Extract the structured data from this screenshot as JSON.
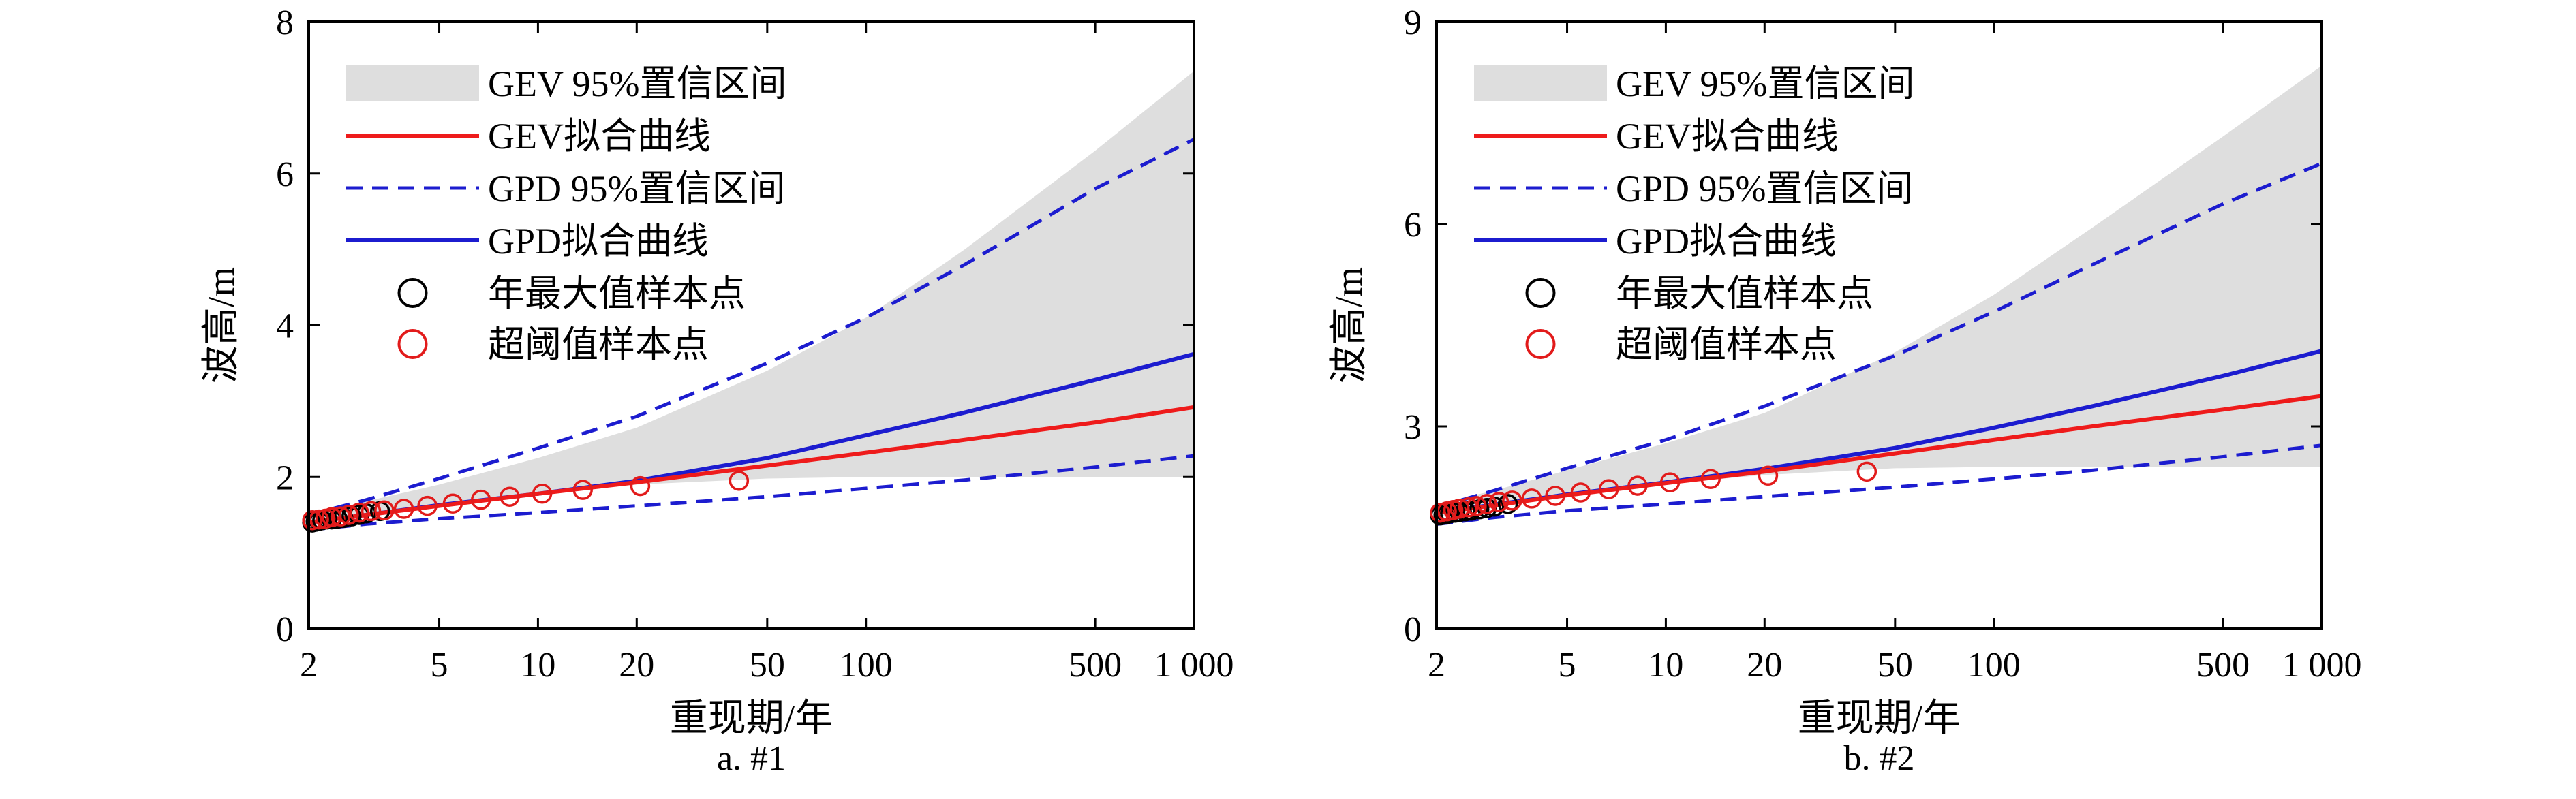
{
  "chart_data": [
    {
      "type": "line",
      "caption": "a. #1",
      "xlabel": "重现期/年",
      "ylabel": "波高/m",
      "x_scale": "log",
      "xlim": [
        2,
        1000
      ],
      "ylim": [
        0,
        8
      ],
      "x_ticks": [
        2,
        5,
        10,
        20,
        50,
        100,
        500,
        1000
      ],
      "x_tick_labels": [
        "2",
        "5",
        "10",
        "20",
        "50",
        "100",
        "500",
        "1 000"
      ],
      "y_ticks": [
        0,
        2,
        4,
        6,
        8
      ],
      "y_tick_labels": [
        "0",
        "2",
        "4",
        "6",
        "8"
      ],
      "grid": false,
      "legend_position": "top-left",
      "legend": [
        {
          "label": "GEV 95%置信区间",
          "style": "band"
        },
        {
          "label": "GEV拟合曲线",
          "style": "solid-red"
        },
        {
          "label": "GPD 95%置信区间",
          "style": "dashed-blue"
        },
        {
          "label": "GPD拟合曲线",
          "style": "solid-blue"
        },
        {
          "label": "年最大值样本点",
          "style": "circle-black"
        },
        {
          "label": "超阈值样本点",
          "style": "circle-red"
        }
      ],
      "x": [
        2,
        3,
        5,
        10,
        20,
        50,
        100,
        200,
        500,
        1000
      ],
      "gev_ci_lower": [
        1.35,
        1.48,
        1.62,
        1.78,
        1.9,
        1.98,
        2.0,
        2.0,
        2.0,
        2.0
      ],
      "gev_ci_upper": [
        1.5,
        1.68,
        1.9,
        2.25,
        2.65,
        3.4,
        4.1,
        5.0,
        6.3,
        7.35
      ],
      "gev_fit": [
        1.4,
        1.5,
        1.62,
        1.78,
        1.93,
        2.15,
        2.32,
        2.49,
        2.72,
        2.92
      ],
      "gpd_ci_lower": [
        1.3,
        1.38,
        1.45,
        1.53,
        1.62,
        1.74,
        1.85,
        1.96,
        2.13,
        2.28
      ],
      "gpd_ci_upper": [
        1.5,
        1.7,
        1.98,
        2.38,
        2.8,
        3.5,
        4.1,
        4.8,
        5.8,
        6.45
      ],
      "gpd_fit": [
        1.4,
        1.5,
        1.63,
        1.78,
        1.95,
        2.25,
        2.55,
        2.85,
        3.28,
        3.62
      ],
      "annual_max_points": {
        "x": [
          2.05,
          2.1,
          2.15,
          2.2,
          2.28,
          2.35,
          2.45,
          2.55,
          2.7,
          2.85,
          3.0,
          3.3
        ],
        "y": [
          1.4,
          1.41,
          1.42,
          1.43,
          1.44,
          1.44,
          1.45,
          1.46,
          1.48,
          1.5,
          1.52,
          1.55
        ]
      },
      "pot_points": {
        "x": [
          2.05,
          2.15,
          2.25,
          2.35,
          2.5,
          2.65,
          2.85,
          3.1,
          3.4,
          3.9,
          4.6,
          5.5,
          6.7,
          8.2,
          10.3,
          13.7,
          20.5,
          41
        ],
        "y": [
          1.43,
          1.44,
          1.45,
          1.47,
          1.48,
          1.5,
          1.53,
          1.55,
          1.56,
          1.58,
          1.62,
          1.65,
          1.7,
          1.74,
          1.78,
          1.83,
          1.88,
          1.95
        ]
      }
    },
    {
      "type": "line",
      "caption": "b. #2",
      "xlabel": "重现期/年",
      "ylabel": "波高/m",
      "x_scale": "log",
      "xlim": [
        2,
        1000
      ],
      "ylim": [
        0,
        9
      ],
      "x_ticks": [
        2,
        5,
        10,
        20,
        50,
        100,
        500,
        1000
      ],
      "x_tick_labels": [
        "2",
        "5",
        "10",
        "20",
        "50",
        "100",
        "500",
        "1 000"
      ],
      "y_ticks": [
        0,
        3,
        6,
        9
      ],
      "y_tick_labels": [
        "0",
        "3",
        "6",
        "9"
      ],
      "grid": false,
      "legend_position": "top-left",
      "legend": [
        {
          "label": "GEV 95%置信区间",
          "style": "band"
        },
        {
          "label": "GEV拟合曲线",
          "style": "solid-red"
        },
        {
          "label": "GPD 95%置信区间",
          "style": "dashed-blue"
        },
        {
          "label": "GPD拟合曲线",
          "style": "solid-blue"
        },
        {
          "label": "年最大值样本点",
          "style": "circle-black"
        },
        {
          "label": "超阈值样本点",
          "style": "circle-red"
        }
      ],
      "x": [
        2,
        3,
        5,
        10,
        20,
        50,
        100,
        200,
        500,
        1000
      ],
      "gev_ci_lower": [
        1.65,
        1.8,
        1.98,
        2.15,
        2.28,
        2.38,
        2.4,
        2.4,
        2.4,
        2.4
      ],
      "gev_ci_upper": [
        1.85,
        2.05,
        2.35,
        2.75,
        3.2,
        4.1,
        4.95,
        5.95,
        7.3,
        8.35
      ],
      "gev_fit": [
        1.72,
        1.83,
        1.98,
        2.16,
        2.33,
        2.6,
        2.8,
        3.0,
        3.25,
        3.45
      ],
      "gpd_ci_lower": [
        1.55,
        1.65,
        1.75,
        1.85,
        1.96,
        2.1,
        2.22,
        2.35,
        2.55,
        2.72
      ],
      "gpd_ci_upper": [
        1.8,
        2.05,
        2.38,
        2.8,
        3.3,
        4.05,
        4.7,
        5.4,
        6.3,
        6.9
      ],
      "gpd_fit": [
        1.72,
        1.84,
        1.99,
        2.17,
        2.37,
        2.68,
        2.98,
        3.3,
        3.75,
        4.12
      ],
      "annual_max_points": {
        "x": [
          2.05,
          2.1,
          2.15,
          2.2,
          2.28,
          2.35,
          2.45,
          2.55,
          2.7,
          2.85,
          3.0,
          3.3
        ],
        "y": [
          1.68,
          1.69,
          1.7,
          1.71,
          1.72,
          1.73,
          1.74,
          1.75,
          1.77,
          1.79,
          1.81,
          1.85
        ]
      },
      "pot_points": {
        "x": [
          2.05,
          2.15,
          2.25,
          2.35,
          2.5,
          2.65,
          2.85,
          3.1,
          3.4,
          3.9,
          4.6,
          5.5,
          6.7,
          8.2,
          10.3,
          13.7,
          20.5,
          41
        ],
        "y": [
          1.72,
          1.74,
          1.76,
          1.78,
          1.8,
          1.82,
          1.85,
          1.88,
          1.9,
          1.93,
          1.97,
          2.02,
          2.07,
          2.12,
          2.17,
          2.22,
          2.27,
          2.33
        ]
      }
    }
  ],
  "colors": {
    "band": "#dedede",
    "gev": "#ee1b1b",
    "gpd": "#1c1ccf",
    "annual_max": "#000000",
    "pot": "#e21b1b"
  }
}
